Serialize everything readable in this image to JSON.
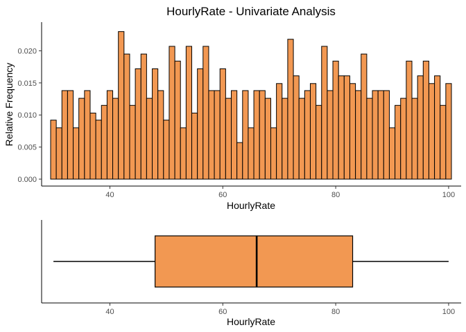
{
  "chart_data": [
    {
      "type": "bar",
      "title": "HourlyRate - Univariate Analysis",
      "xlabel": "HourlyRate",
      "ylabel": "Relative Frequency",
      "xlim": [
        29.5,
        100.5
      ],
      "ylim": [
        0,
        0.0235
      ],
      "xticks": [
        {
          "value": 40,
          "label": "40"
        },
        {
          "value": 60,
          "label": "60"
        },
        {
          "value": 80,
          "label": "80"
        },
        {
          "value": 100,
          "label": "100"
        }
      ],
      "yticks": [
        {
          "value": 0,
          "label": "0.000"
        },
        {
          "value": 0.005,
          "label": "0.005"
        },
        {
          "value": 0.01,
          "label": "0.010"
        },
        {
          "value": 0.015,
          "label": "0.015"
        },
        {
          "value": 0.02,
          "label": "0.020"
        }
      ],
      "bin_start": 30,
      "bin_width": 1,
      "values": [
        0.0092,
        0.008,
        0.0138,
        0.0138,
        0.008,
        0.0126,
        0.0138,
        0.0103,
        0.0092,
        0.0115,
        0.0138,
        0.0126,
        0.023,
        0.0195,
        0.0115,
        0.0172,
        0.0195,
        0.0126,
        0.0172,
        0.0138,
        0.0092,
        0.0207,
        0.0184,
        0.008,
        0.0207,
        0.0103,
        0.0172,
        0.0207,
        0.0138,
        0.0138,
        0.0172,
        0.0126,
        0.0138,
        0.0057,
        0.0138,
        0.008,
        0.0138,
        0.0138,
        0.0126,
        0.008,
        0.0149,
        0.0126,
        0.0218,
        0.0161,
        0.0126,
        0.0138,
        0.0149,
        0.0115,
        0.0207,
        0.0138,
        0.0184,
        0.0161,
        0.0161,
        0.0149,
        0.0138,
        0.0195,
        0.0126,
        0.0138,
        0.0138,
        0.0138,
        0.008,
        0.0115,
        0.0126,
        0.0184,
        0.0126,
        0.0161,
        0.0184,
        0.0149,
        0.0161,
        0.0115,
        0.0149
      ],
      "grid": false,
      "fill": "#f29852",
      "stroke": "#000000"
    },
    {
      "type": "box",
      "xlabel": "HourlyRate",
      "xlim": [
        29.5,
        100.5
      ],
      "xticks": [
        {
          "value": 40,
          "label": "40"
        },
        {
          "value": 60,
          "label": "60"
        },
        {
          "value": 80,
          "label": "80"
        },
        {
          "value": 100,
          "label": "100"
        }
      ],
      "min": 30,
      "q1": 48,
      "median": 66,
      "q3": 83,
      "max": 100,
      "grid": false,
      "fill": "#f29852",
      "stroke": "#000000"
    }
  ]
}
